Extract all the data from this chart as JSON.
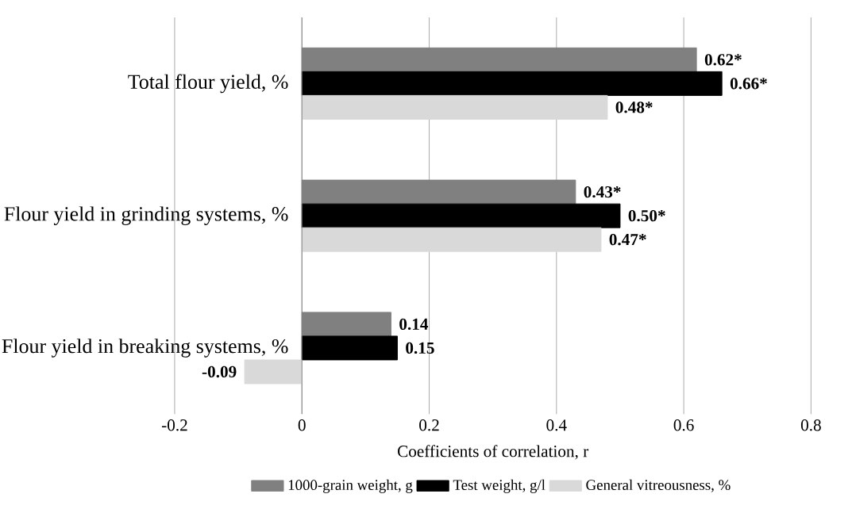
{
  "chart_data": {
    "type": "bar",
    "orientation": "horizontal",
    "categories": [
      "Total flour yield, %",
      "Flour yield in grinding systems, %",
      "Flour yield in breaking systems, %"
    ],
    "series": [
      {
        "name": "1000-grain weight, g",
        "color": "#808080",
        "values": [
          0.62,
          0.43,
          0.14
        ],
        "value_labels": [
          "0.62*",
          "0.43*",
          "0.14"
        ]
      },
      {
        "name": "Test weight, g/l",
        "color": "#000000",
        "values": [
          0.66,
          0.5,
          0.15
        ],
        "value_labels": [
          "0.66*",
          "0.50*",
          "0.15"
        ]
      },
      {
        "name": "General vitreousness, %",
        "color": "#d9d9d9",
        "values": [
          0.48,
          0.47,
          -0.09
        ],
        "value_labels": [
          "0.48*",
          "0.47*",
          "-0.09"
        ]
      }
    ],
    "xlabel": "Coefficients of correlation, r",
    "xlim": [
      -0.2,
      0.8
    ],
    "xticks": [
      -0.2,
      0,
      0.2,
      0.4,
      0.6,
      0.8
    ],
    "grid": "x",
    "legend": "bottom"
  }
}
